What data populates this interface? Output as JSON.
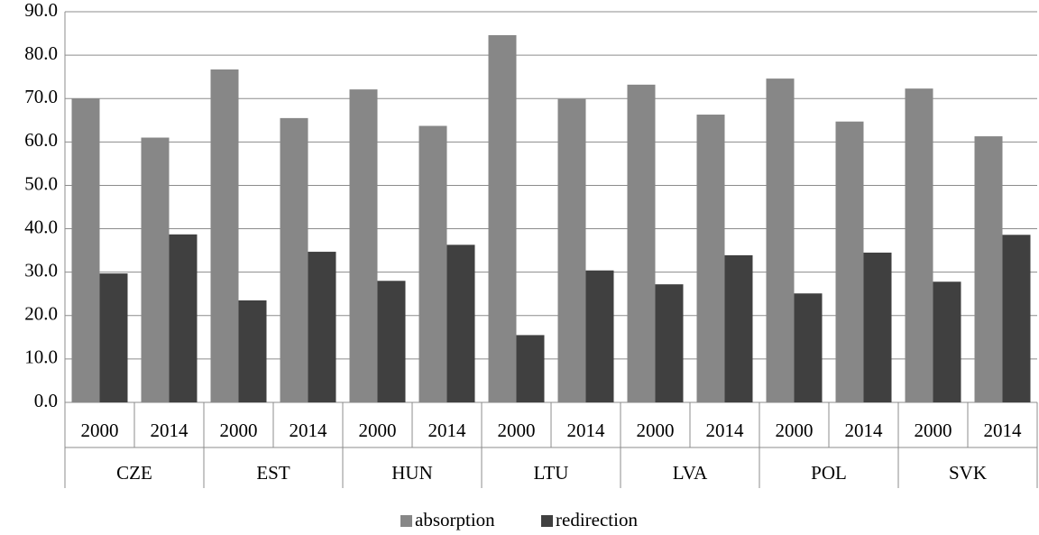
{
  "chart_data": {
    "type": "bar",
    "categories": [
      "2000",
      "2014",
      "2000",
      "2014",
      "2000",
      "2014",
      "2000",
      "2014",
      "2000",
      "2014",
      "2000",
      "2014",
      "2000",
      "2014"
    ],
    "category_groups": [
      "CZE",
      "EST",
      "HUN",
      "LTU",
      "LVA",
      "POL",
      "SVK"
    ],
    "series": [
      {
        "name": "absorption",
        "color": "#878787",
        "values": [
          70.0,
          61.0,
          76.7,
          65.5,
          72.1,
          63.7,
          84.6,
          69.9,
          73.2,
          66.3,
          74.6,
          64.7,
          72.3,
          61.3
        ]
      },
      {
        "name": "redirection",
        "color": "#404040",
        "values": [
          29.7,
          38.7,
          23.5,
          34.7,
          28.0,
          36.3,
          15.5,
          30.4,
          27.2,
          33.9,
          25.1,
          34.5,
          27.8,
          38.6
        ]
      }
    ],
    "ylim": [
      0,
      90
    ],
    "yticks": [
      {
        "value": 0,
        "label": "0.0"
      },
      {
        "value": 10,
        "label": "10.0"
      },
      {
        "value": 20,
        "label": "20.0"
      },
      {
        "value": 30,
        "label": "30.0"
      },
      {
        "value": 40,
        "label": "40.0"
      },
      {
        "value": 50,
        "label": "50.0"
      },
      {
        "value": 60,
        "label": "60.0"
      },
      {
        "value": 70,
        "label": "70.0"
      },
      {
        "value": 80,
        "label": "80.0"
      },
      {
        "value": 90,
        "label": "90.0"
      }
    ],
    "grid": true,
    "legend": "bottom"
  }
}
